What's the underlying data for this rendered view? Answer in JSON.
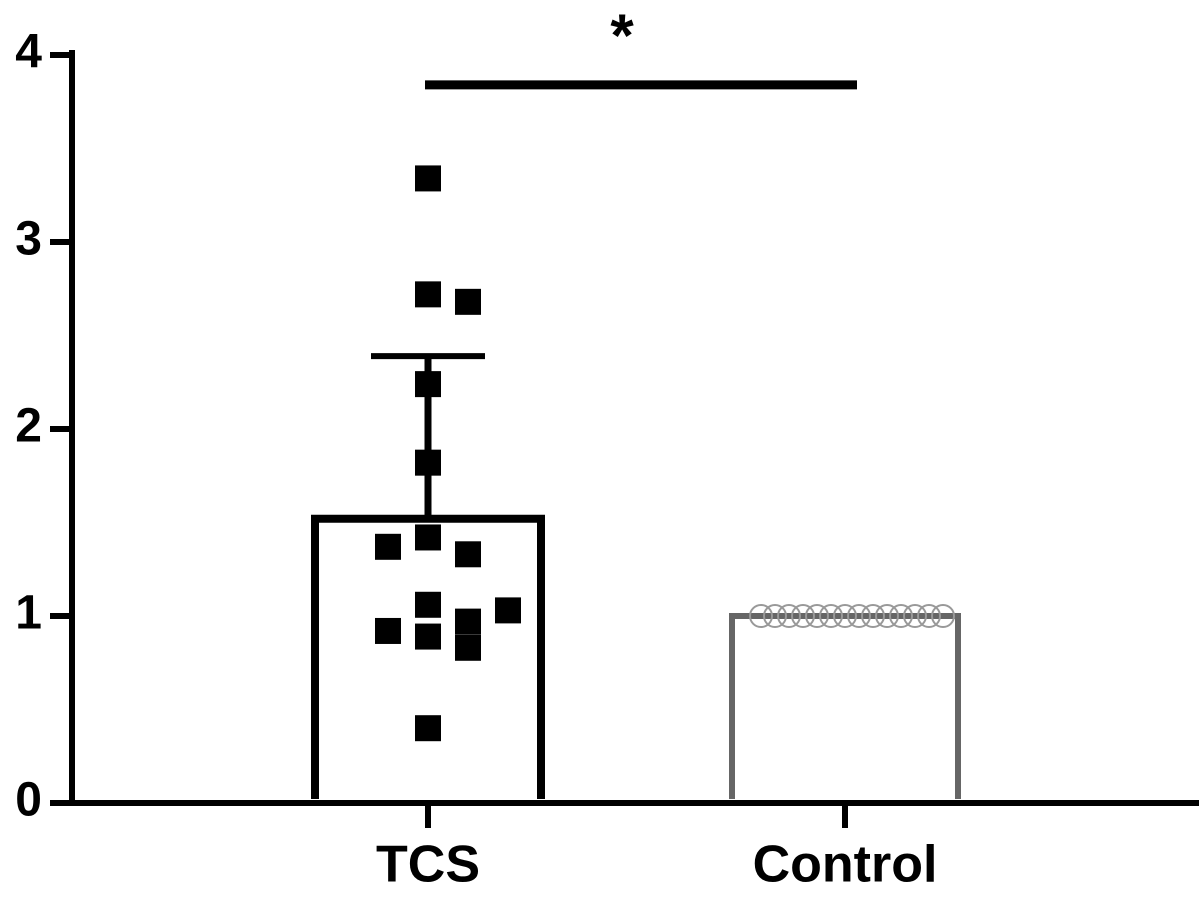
{
  "chart_data": {
    "type": "bar",
    "categories": [
      "TCS",
      "Control"
    ],
    "means": [
      1.52,
      1.0
    ],
    "errors": [
      0.87,
      0
    ],
    "colors": [
      "#000000",
      "#666666"
    ],
    "markers": [
      "square",
      "circle"
    ],
    "points": [
      [
        3.34,
        2.72,
        2.68,
        2.24,
        1.82,
        1.42,
        1.33,
        1.37,
        1.06,
        0.97,
        0.89,
        0.83,
        0.92,
        1.03,
        0.4
      ],
      [
        1.0,
        1.0,
        1.0,
        1.0,
        1.0,
        1.0,
        1.0,
        1.0,
        1.0,
        1.0,
        1.0,
        1.0,
        1.0,
        1.0
      ]
    ],
    "ylim": [
      0,
      4
    ],
    "yticks": [
      0,
      1,
      2,
      3,
      4
    ],
    "annotation": {
      "text": "*",
      "y": 3.84
    }
  }
}
